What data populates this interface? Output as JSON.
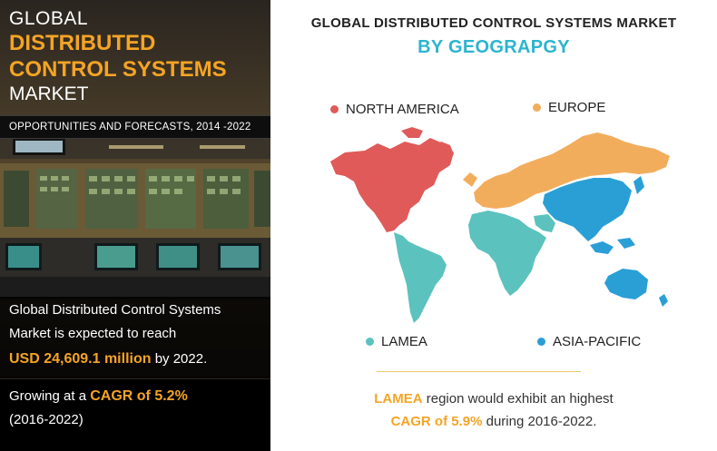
{
  "header": {
    "line1": "GLOBAL",
    "line2": "DISTRIBUTED",
    "line3": "CONTROL SYSTEMS",
    "line4": "MARKET"
  },
  "forecast_bar": {
    "text": "OPPORTUNITIES AND FORECASTS, 2014 -2022"
  },
  "stat": {
    "line1": "Global Distributed Control Systems",
    "line2": "Market is expected to reach",
    "value": "USD 24,609.1 million",
    "suffix": "by 2022."
  },
  "growth": {
    "prefix": "Growing at a",
    "cagr": "CAGR of 5.2%",
    "period": "(2016-2022)"
  },
  "map_section": {
    "title": "GLOBAL DISTRIBUTED CONTROL SYSTEMS MARKET",
    "subtitle": "BY GEOGRAPGY",
    "regions": [
      {
        "label": "NORTH AMERICA",
        "color": "#e05a5a"
      },
      {
        "label": "EUROPE",
        "color": "#f2ad5c"
      },
      {
        "label": "LAMEA",
        "color": "#5bc2be"
      },
      {
        "label": "ASIA-PACIFIC",
        "color": "#2a9fd6"
      }
    ]
  },
  "note": {
    "region": "LAMEA",
    "text1": "region would exhibit an highest",
    "cagr": "CAGR of 5.9%",
    "text2": "during 2016-2022."
  }
}
